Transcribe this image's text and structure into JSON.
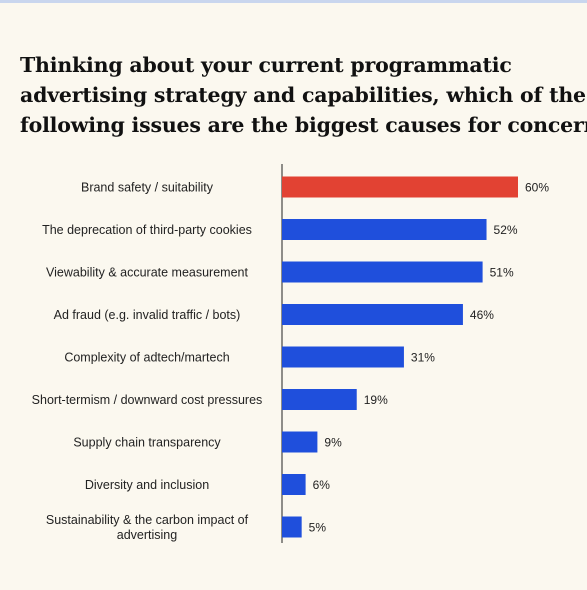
{
  "chart_data": {
    "type": "bar",
    "orientation": "horizontal",
    "title_lines": [
      "Thinking about your current programmatic",
      "advertising strategy and capabilities, which of the",
      "following issues are the biggest causes for concern?"
    ],
    "categories": [
      [
        "Brand safety / suitability"
      ],
      [
        "The deprecation of third-party cookies"
      ],
      [
        "Viewability & accurate measurement"
      ],
      [
        "Ad fraud (e.g. invalid traffic / bots)"
      ],
      [
        "Complexity of adtech/martech"
      ],
      [
        "Short-termism / downward cost pressures"
      ],
      [
        "Supply chain transparency"
      ],
      [
        "Diversity and inclusion"
      ],
      [
        "Sustainability & the carbon impact of",
        "advertising"
      ]
    ],
    "values": [
      60,
      52,
      51,
      46,
      31,
      19,
      9,
      6,
      5
    ],
    "value_labels": [
      "60%",
      "52%",
      "51%",
      "46%",
      "31%",
      "19%",
      "9%",
      "6%",
      "5%"
    ],
    "highlight_index": 0,
    "xlim": [
      0,
      60
    ],
    "grid": false,
    "colors": {
      "highlight": "#e24233",
      "bar": "#1f4fdc",
      "axis": "#222222"
    }
  }
}
